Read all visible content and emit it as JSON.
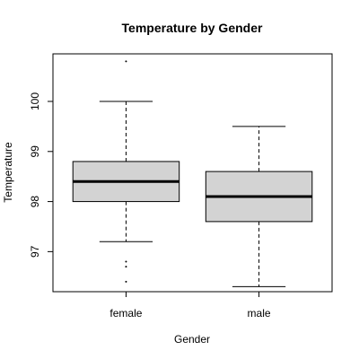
{
  "chart_data": {
    "type": "box",
    "title": "Temperature by Gender",
    "xlabel": "Gender",
    "ylabel": "Temperature",
    "categories": [
      "female",
      "male"
    ],
    "ylim": [
      96.2,
      100.95
    ],
    "yticks": [
      97,
      98,
      99,
      100
    ],
    "boxes": [
      {
        "category": "female",
        "whisker_low": 97.2,
        "q1": 98.0,
        "median": 98.4,
        "q3": 98.8,
        "whisker_high": 100.0,
        "outliers": [
          96.4,
          96.7,
          96.8,
          100.8
        ]
      },
      {
        "category": "male",
        "whisker_low": 96.3,
        "q1": 97.6,
        "median": 98.1,
        "q3": 98.6,
        "whisker_high": 99.5,
        "outliers": []
      }
    ],
    "box_fill": "#d3d3d3",
    "grid": false,
    "legend": "none"
  }
}
